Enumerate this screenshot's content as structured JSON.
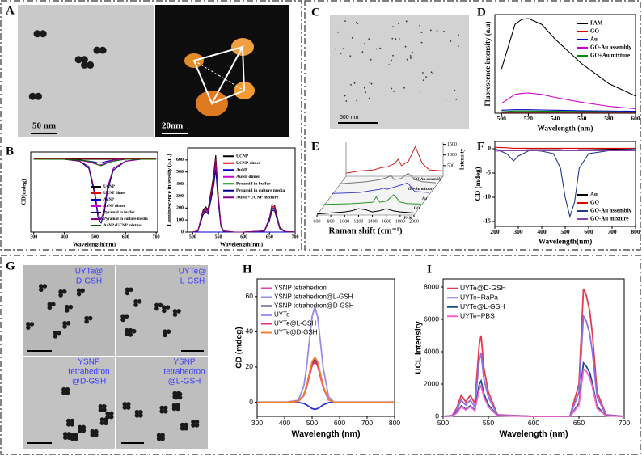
{
  "panel_labels": [
    "A",
    "B",
    "C",
    "D",
    "E",
    "F",
    "G",
    "H",
    "I"
  ],
  "images": {
    "scale_bars": [
      "50 nm",
      "20nm",
      "500 nm"
    ],
    "g_labels": [
      [
        "UYTe@",
        "D-GSH"
      ],
      [
        "UYTe@",
        "L-GSH"
      ],
      [
        "YSNP",
        "tetrahedron",
        "@D-GSH"
      ],
      [
        "YSNP",
        "tetrahedron",
        "@L-GSH"
      ]
    ]
  },
  "chart_data": [
    {
      "type": "line",
      "xlabel": "Wavelength(nm)",
      "ylabel": "CD(mdeg)",
      "legend": "lower right",
      "x": [
        300,
        350,
        400,
        450,
        480,
        500,
        510,
        520,
        530,
        540,
        560,
        600,
        650,
        700
      ],
      "xlim": [
        290,
        705
      ],
      "ylim": [
        -40,
        4
      ],
      "xticks": [
        300,
        400,
        500,
        600,
        700
      ],
      "series": [
        {
          "name": "UCNP",
          "color": "#000000",
          "values": [
            0,
            0,
            0,
            0,
            0,
            0,
            0,
            0,
            0,
            0,
            0,
            0,
            0,
            0
          ]
        },
        {
          "name": "UCNP dimer",
          "color": "#e00000",
          "values": [
            0.5,
            0.5,
            0.5,
            0.5,
            0.5,
            0.5,
            0.5,
            0.5,
            0.5,
            0.5,
            0.5,
            0.5,
            0.5,
            0.5
          ]
        },
        {
          "name": "AuNP",
          "color": "#0000cc",
          "values": [
            0,
            0,
            0,
            -0.5,
            -1,
            -1.5,
            -2,
            -2,
            -1.5,
            -1,
            -0.5,
            0,
            0,
            0
          ]
        },
        {
          "name": "AuNP dimer",
          "color": "#cc00cc",
          "values": [
            0,
            0,
            0,
            -0.5,
            -1.5,
            -2.5,
            -3,
            -3,
            -2.5,
            -1.5,
            -0.5,
            0,
            0,
            0
          ]
        },
        {
          "name": "Pyramid in buffer",
          "color": "#000088",
          "values": [
            0,
            0,
            0,
            -1,
            -5,
            -20,
            -32,
            -35,
            -30,
            -18,
            -6,
            -1,
            0,
            0
          ]
        },
        {
          "name": "Pyramid in culture media",
          "color": "#880088",
          "values": [
            0,
            0,
            0,
            -1,
            -4,
            -18,
            -30,
            -33,
            -28,
            -16,
            -5,
            -1,
            0,
            0
          ]
        },
        {
          "name": "AuNP+UCNP mixture",
          "color": "#006600",
          "values": [
            0,
            0,
            0,
            -0.5,
            -1,
            -2,
            -3,
            -3.5,
            -3,
            -2,
            -1,
            0,
            0,
            0
          ]
        }
      ]
    },
    {
      "type": "line",
      "xlabel": "Wavelength(nm)",
      "ylabel": "Luminescence intensity (a.u.)",
      "legend": "upper right",
      "x": [
        500,
        510,
        520,
        525,
        530,
        540,
        545,
        550,
        555,
        560,
        580,
        600,
        640,
        650,
        655,
        660,
        665,
        670,
        680,
        700
      ],
      "xlim": [
        490,
        700
      ],
      "ylim": [
        0,
        700
      ],
      "xticks": [
        500,
        550,
        600,
        650,
        700
      ],
      "yticks": [
        0,
        100,
        200,
        300,
        400,
        500,
        600
      ],
      "series": [
        {
          "name": "UCNP",
          "color": "#000000",
          "values": [
            0,
            10,
            180,
            210,
            190,
            450,
            640,
            300,
            60,
            10,
            0,
            0,
            10,
            120,
            230,
            220,
            130,
            40,
            5,
            0
          ]
        },
        {
          "name": "UCNP dimer",
          "color": "#e00000",
          "values": [
            0,
            10,
            170,
            200,
            180,
            430,
            610,
            290,
            55,
            10,
            0,
            0,
            10,
            110,
            215,
            210,
            120,
            35,
            5,
            0
          ]
        },
        {
          "name": "AuNP",
          "color": "#0000cc",
          "values": [
            0,
            0,
            0,
            0,
            0,
            0,
            0,
            0,
            0,
            0,
            0,
            0,
            0,
            0,
            0,
            0,
            0,
            0,
            0,
            0
          ]
        },
        {
          "name": "AuNP  dimer",
          "color": "#cc00cc",
          "values": [
            0,
            8,
            150,
            180,
            160,
            380,
            550,
            260,
            50,
            8,
            0,
            0,
            8,
            100,
            190,
            185,
            110,
            30,
            4,
            0
          ]
        },
        {
          "name": "Pyramid in buffer",
          "color": "#008800",
          "values": [
            0,
            9,
            160,
            190,
            170,
            400,
            580,
            270,
            52,
            9,
            0,
            0,
            9,
            105,
            200,
            195,
            115,
            32,
            4,
            0
          ]
        },
        {
          "name": "Pyramid in culture media",
          "color": "#000088",
          "values": [
            0,
            8,
            140,
            170,
            150,
            360,
            520,
            240,
            45,
            8,
            0,
            0,
            8,
            95,
            180,
            175,
            100,
            28,
            4,
            0
          ]
        },
        {
          "name": "AuNP+UCNP mixture",
          "color": "#880088",
          "values": [
            0,
            9,
            165,
            195,
            175,
            410,
            595,
            275,
            53,
            9,
            0,
            0,
            9,
            108,
            205,
            200,
            118,
            33,
            4,
            0
          ]
        }
      ]
    },
    {
      "type": "line",
      "xlabel": "Wavelength (nm)",
      "ylabel": "Fluorescence intensity (a.u)",
      "legend": "upper right",
      "x": [
        500,
        510,
        515,
        520,
        530,
        540,
        560,
        580,
        600
      ],
      "xlim": [
        495,
        600
      ],
      "ylim": [
        0,
        2000
      ],
      "xticks": [
        500,
        520,
        540,
        560,
        580,
        600
      ],
      "series": [
        {
          "name": "FAM",
          "color": "#000000",
          "values": [
            900,
            1800,
            1900,
            1920,
            1800,
            1500,
            1000,
            600,
            350
          ]
        },
        {
          "name": "GO",
          "color": "#e00000",
          "values": [
            20,
            20,
            20,
            20,
            20,
            20,
            20,
            20,
            20
          ]
        },
        {
          "name": "Au",
          "color": "#0000cc",
          "values": [
            60,
            70,
            70,
            70,
            65,
            60,
            50,
            45,
            40
          ]
        },
        {
          "name": "GO-Au assembly",
          "color": "#cc00cc",
          "values": [
            200,
            380,
            400,
            410,
            380,
            320,
            220,
            140,
            90
          ]
        },
        {
          "name": "GO+Au mixture",
          "color": "#008800",
          "values": [
            30,
            45,
            45,
            45,
            42,
            40,
            35,
            30,
            25
          ]
        }
      ]
    },
    {
      "type": "line3d",
      "xlabel": "Raman shift (cm⁻¹)",
      "ylabel": "Intensity",
      "x": [
        600,
        800,
        1000,
        1100,
        1200,
        1300,
        1350,
        1400,
        1500,
        1600,
        1700,
        1800,
        2000
      ],
      "xlim": [
        600,
        2000
      ],
      "ylim": [
        0,
        1600
      ],
      "xticks": [
        600,
        800,
        1000,
        1200,
        1400,
        1600,
        1800,
        2000
      ],
      "yticks": [
        500,
        1000,
        1500
      ],
      "series": [
        {
          "name": "GO-Au assembly",
          "color": "#cc2222",
          "values": [
            150,
            250,
            300,
            400,
            450,
            600,
            800,
            500,
            700,
            1400,
            600,
            300,
            250
          ]
        },
        {
          "name": "GO-Au mixture",
          "color": "#777777",
          "values": [
            100,
            150,
            200,
            250,
            300,
            400,
            500,
            300,
            350,
            600,
            300,
            200,
            150
          ]
        },
        {
          "name": "Au",
          "color": "#4444cc",
          "values": [
            100,
            120,
            150,
            200,
            250,
            300,
            350,
            300,
            400,
            500,
            600,
            200,
            150
          ]
        },
        {
          "name": "GO",
          "color": "#229922",
          "values": [
            50,
            60,
            80,
            100,
            120,
            150,
            400,
            150,
            200,
            500,
            150,
            80,
            60
          ]
        },
        {
          "name": "FAM",
          "color": "#000000",
          "values": [
            50,
            100,
            150,
            200,
            300,
            250,
            200,
            150,
            200,
            300,
            200,
            150,
            100
          ]
        }
      ]
    },
    {
      "type": "line",
      "xlabel": "Wavelength(nm)",
      "ylabel": "CD (mdeg)",
      "legend": "lower right",
      "x": [
        200,
        250,
        280,
        300,
        350,
        400,
        450,
        480,
        500,
        520,
        540,
        560,
        600,
        700,
        800
      ],
      "xlim": [
        200,
        800
      ],
      "ylim": [
        -16,
        1.5
      ],
      "xticks": [
        200,
        300,
        400,
        500,
        600,
        700,
        800
      ],
      "yticks": [
        0,
        -5,
        -10,
        -15
      ],
      "series": [
        {
          "name": "Au",
          "color": "#000000",
          "values": [
            -0.2,
            -0.3,
            -0.4,
            -0.3,
            -0.2,
            -0.2,
            -0.2,
            -0.2,
            -0.3,
            -0.3,
            -0.3,
            -0.2,
            -0.2,
            -0.1,
            0
          ]
        },
        {
          "name": "GO",
          "color": "#e00000",
          "values": [
            0.3,
            0.2,
            0.1,
            0.1,
            0.1,
            0.1,
            0.1,
            0.1,
            0.1,
            0.1,
            0.1,
            0.1,
            0.1,
            0.1,
            0.1
          ]
        },
        {
          "name": "GO-Au assembly",
          "color": "#223a88",
          "values": [
            0,
            -1,
            -2.5,
            -1.5,
            -0.3,
            -0.5,
            -1,
            -4,
            -10,
            -14,
            -11,
            -4,
            -1,
            -0.3,
            0
          ]
        },
        {
          "name": "GO-Au mixture",
          "color": "#8844aa",
          "values": [
            -0.5,
            -0.4,
            -0.4,
            -0.4,
            -0.4,
            -0.4,
            -0.4,
            -0.4,
            -0.4,
            -0.4,
            -0.4,
            -0.4,
            -0.4,
            -0.4,
            -0.4
          ]
        }
      ]
    },
    {
      "type": "line",
      "xlabel": "Wavelength (nm)",
      "ylabel": "CD (mdeg)",
      "legend": "upper left",
      "x": [
        300,
        350,
        400,
        450,
        470,
        480,
        490,
        500,
        510,
        520,
        530,
        540,
        560,
        580,
        600,
        650,
        700,
        800
      ],
      "xlim": [
        300,
        800
      ],
      "ylim": [
        -8,
        70
      ],
      "xticks": [
        300,
        400,
        500,
        600,
        700,
        800
      ],
      "yticks": [
        0,
        20,
        40,
        60
      ],
      "series": [
        {
          "name": "YSNP tetrahedron",
          "color": "#e040c0",
          "values": [
            0,
            0,
            0,
            0.5,
            4.1,
            8.9,
            15.4,
            21.6,
            24,
            21.6,
            15.4,
            8.9,
            1.4,
            0,
            0,
            0,
            0,
            0
          ]
        },
        {
          "name": "YSNP tetrahedron@L-GSH",
          "color": "#9a8be8",
          "values": [
            0,
            0,
            0,
            1.1,
            9.2,
            20,
            34.6,
            48.6,
            54,
            48.6,
            34.6,
            20,
            3.2,
            0,
            0,
            0,
            0,
            0
          ]
        },
        {
          "name": "YSNP tetrahedron@D-GSH",
          "color": "#1a1a6e",
          "values": [
            0,
            0,
            0,
            0.5,
            4.3,
            9.3,
            16,
            22.5,
            25,
            22.5,
            16,
            9.3,
            1.5,
            0,
            0,
            0,
            0,
            0
          ]
        },
        {
          "name": "UYTe",
          "color": "#3030e0",
          "values": [
            0,
            0,
            0,
            -0.1,
            -0.7,
            -1.5,
            -2.6,
            -3.6,
            -4,
            -3.6,
            -2.6,
            -1.5,
            -0.2,
            0,
            0,
            0,
            0,
            0
          ]
        },
        {
          "name": "UYTe@L-GSH",
          "color": "#e0307a",
          "values": [
            0,
            0,
            0,
            0.5,
            3.9,
            8.5,
            14.7,
            20.7,
            23,
            20.7,
            14.7,
            8.5,
            1.4,
            0,
            0,
            0,
            0,
            0
          ]
        },
        {
          "name": "UYTe@D-GSH",
          "color": "#f08030",
          "values": [
            0,
            0,
            0,
            0.5,
            4.3,
            9.4,
            16.3,
            23,
            25.5,
            23,
            16.3,
            9.4,
            1.5,
            0,
            0,
            0,
            0,
            0
          ]
        }
      ]
    },
    {
      "type": "line",
      "xlabel": "Wavelength (nm)",
      "ylabel": "UCL intensity",
      "legend": "upper left",
      "x": [
        500,
        510,
        515,
        520,
        525,
        530,
        535,
        540,
        542,
        545,
        550,
        560,
        600,
        640,
        650,
        655,
        658,
        662,
        665,
        670,
        680,
        700
      ],
      "xlim": [
        500,
        700
      ],
      "ylim": [
        0,
        8500
      ],
      "xticks": [
        500,
        550,
        600,
        650,
        700
      ],
      "yticks": [
        0,
        2000,
        4000,
        6000,
        8000
      ],
      "series": [
        {
          "name": "UYTe@D-GSH",
          "color": "#e83a4a",
          "values": [
            0,
            50,
            500,
            1300,
            900,
            1300,
            800,
            4500,
            5000,
            3000,
            1500,
            100,
            0,
            0,
            2000,
            7900,
            7500,
            6500,
            5000,
            1500,
            100,
            0
          ]
        },
        {
          "name": "UYTe+RaPa",
          "color": "#8a70e8",
          "values": [
            0,
            40,
            400,
            1000,
            700,
            1000,
            600,
            3500,
            3900,
            2300,
            1200,
            80,
            0,
            0,
            1500,
            6200,
            5900,
            5100,
            3900,
            1200,
            80,
            0
          ]
        },
        {
          "name": "UYTe@L-GSH",
          "color": "#1a4a8a",
          "values": [
            0,
            20,
            250,
            650,
            450,
            650,
            400,
            2000,
            2200,
            1400,
            700,
            50,
            0,
            0,
            800,
            3300,
            3100,
            2700,
            2000,
            600,
            40,
            0
          ]
        },
        {
          "name": "UYTe+PBS",
          "color": "#f060d0",
          "values": [
            0,
            20,
            200,
            600,
            400,
            600,
            350,
            1700,
            1900,
            1200,
            600,
            40,
            0,
            0,
            700,
            2900,
            2800,
            2400,
            1800,
            500,
            30,
            0
          ]
        }
      ]
    }
  ]
}
